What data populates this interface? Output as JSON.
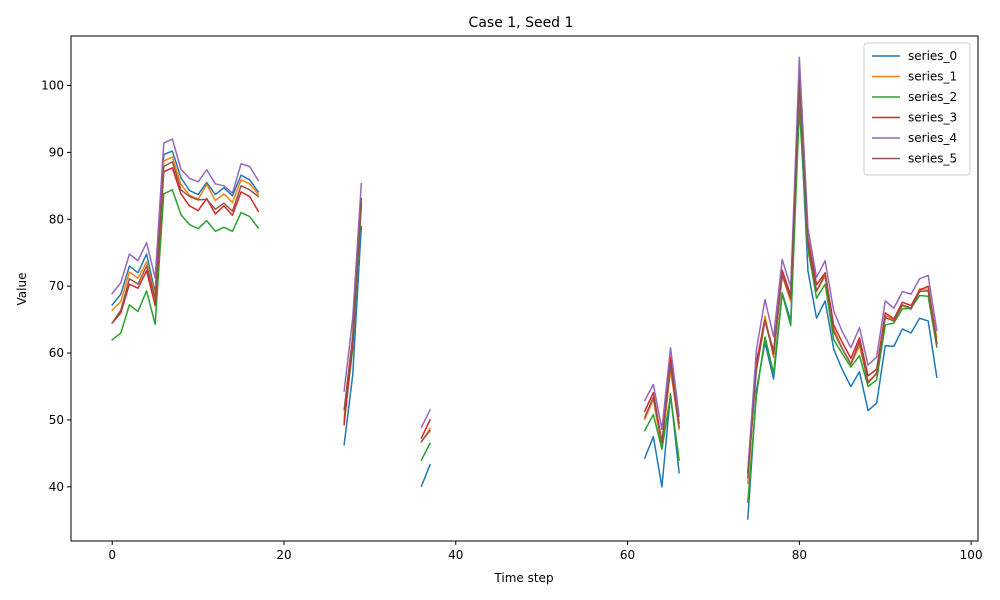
{
  "chart_data": {
    "type": "line",
    "title": "Case 1, Seed 1",
    "xlabel": "Time step",
    "ylabel": "Value",
    "xlim": [
      -4.8,
      100.8
    ],
    "ylim": [
      31.9,
      107.4
    ],
    "xticks": [
      0,
      20,
      40,
      60,
      80,
      100
    ],
    "yticks": [
      40,
      50,
      60,
      70,
      80,
      90,
      100
    ],
    "grid": false,
    "legend_position": "top-right",
    "segments": [
      [
        0,
        17
      ],
      [
        27,
        29
      ],
      [
        36,
        37
      ],
      [
        62,
        66
      ],
      [
        74,
        96
      ]
    ],
    "series": [
      {
        "name": "series_0",
        "color": "#1f77b4",
        "values": [
          [
            67.2,
            68.8,
            73.0,
            72.0,
            74.8,
            69.0,
            89.7,
            90.2,
            86.2,
            84.3,
            83.7,
            85.5,
            83.7,
            84.7,
            83.5,
            86.6,
            85.9,
            84.1
          ],
          [
            46.3,
            56.7,
            78.9
          ],
          [
            40.1,
            43.3
          ],
          [
            44.3,
            47.5,
            40.0,
            53.9,
            42.1
          ],
          [
            35.2,
            54.4,
            61.6,
            56.1,
            69.0,
            64.8,
            98.9,
            72.3,
            65.2,
            67.8,
            60.6,
            57.5,
            55.0,
            57.2,
            51.4,
            52.5,
            61.1,
            61.0,
            63.6,
            63.0,
            65.2,
            64.8,
            56.4
          ]
        ]
      },
      {
        "name": "series_1",
        "color": "#ff7f0e",
        "values": [
          [
            66.4,
            67.7,
            72.1,
            71.2,
            73.6,
            68.6,
            88.7,
            89.3,
            85.2,
            83.6,
            83.0,
            85.2,
            82.8,
            83.8,
            82.5,
            85.9,
            85.3,
            83.7
          ],
          [
            50.3,
            62.4,
            82.3
          ],
          [
            46.7,
            48.7
          ],
          [
            50.1,
            53.1,
            45.8,
            57.5,
            48.6
          ],
          [
            40.5,
            58.2,
            65.5,
            59.3,
            71.6,
            67.7,
            99.8,
            75.2,
            69.2,
            71.5,
            63.6,
            60.7,
            58.3,
            61.1,
            55.8,
            56.8,
            65.6,
            65.0,
            67.1,
            66.5,
            69.6,
            69.5,
            62.3
          ]
        ]
      },
      {
        "name": "series_2",
        "color": "#2ca02c",
        "values": [
          [
            62.0,
            63.0,
            67.2,
            66.2,
            69.3,
            64.3,
            83.8,
            84.4,
            80.7,
            79.2,
            78.6,
            79.8,
            78.2,
            78.8,
            78.2,
            81.0,
            80.4,
            78.7
          ],
          [
            49.7,
            60.7,
            82.1
          ],
          [
            44.0,
            46.5
          ],
          [
            48.4,
            50.8,
            45.6,
            53.6,
            44.0
          ],
          [
            37.7,
            53.6,
            62.4,
            57.0,
            68.9,
            64.1,
            96.6,
            75.7,
            68.2,
            70.3,
            62.0,
            59.9,
            57.9,
            59.6,
            55.0,
            56.0,
            64.2,
            64.5,
            66.6,
            66.7,
            68.6,
            68.5,
            60.9
          ]
        ]
      },
      {
        "name": "series_3",
        "color": "#d62728",
        "values": [
          [
            64.5,
            66.0,
            70.3,
            69.7,
            72.3,
            67.1,
            87.1,
            87.7,
            83.8,
            82.0,
            81.3,
            83.1,
            80.8,
            82.0,
            80.6,
            84.1,
            83.4,
            81.2
          ],
          [
            49.3,
            61.5,
            83.1
          ],
          [
            47.3,
            50.0
          ],
          [
            51.3,
            54.1,
            46.6,
            59.4,
            49.5
          ],
          [
            42.1,
            58.7,
            64.9,
            60.3,
            72.4,
            68.6,
            101.5,
            77.2,
            70.2,
            72.0,
            64.2,
            61.6,
            59.2,
            62.3,
            56.6,
            57.6,
            66.0,
            65.1,
            67.6,
            67.1,
            69.4,
            70.0,
            61.4
          ]
        ]
      },
      {
        "name": "series_4",
        "color": "#9467bd",
        "values": [
          [
            68.9,
            70.5,
            74.8,
            73.8,
            76.5,
            71.2,
            91.4,
            92.0,
            87.5,
            86.1,
            85.6,
            87.4,
            85.3,
            85.0,
            83.9,
            88.3,
            87.9,
            85.8
          ],
          [
            54.3,
            65.2,
            85.3
          ],
          [
            48.9,
            51.5
          ],
          [
            52.9,
            55.3,
            48.6,
            60.8,
            50.6
          ],
          [
            42.3,
            60.5,
            68.0,
            62.4,
            74.0,
            69.9,
            104.2,
            78.7,
            71.3,
            73.8,
            66.3,
            63.2,
            60.8,
            63.8,
            58.2,
            59.4,
            67.8,
            66.7,
            69.2,
            68.8,
            71.1,
            71.6,
            63.4
          ]
        ]
      },
      {
        "name": "series_5",
        "color": "#8c564b",
        "values": [
          [
            64.5,
            66.4,
            71.1,
            70.3,
            73.0,
            68.1,
            87.9,
            88.6,
            84.4,
            83.4,
            82.9,
            83.0,
            81.5,
            82.4,
            81.2,
            85.0,
            84.4,
            83.4
          ],
          [
            51.5,
            62.5,
            82.6
          ],
          [
            46.8,
            48.4
          ],
          [
            50.4,
            53.4,
            46.5,
            58.2,
            48.9
          ],
          [
            41.4,
            57.4,
            64.8,
            59.8,
            71.7,
            68.1,
            100.2,
            76.4,
            69.3,
            71.8,
            63.2,
            60.6,
            58.4,
            61.7,
            55.5,
            57.0,
            65.3,
            64.8,
            67.2,
            66.7,
            69.2,
            69.3,
            61.6
          ]
        ]
      }
    ]
  }
}
